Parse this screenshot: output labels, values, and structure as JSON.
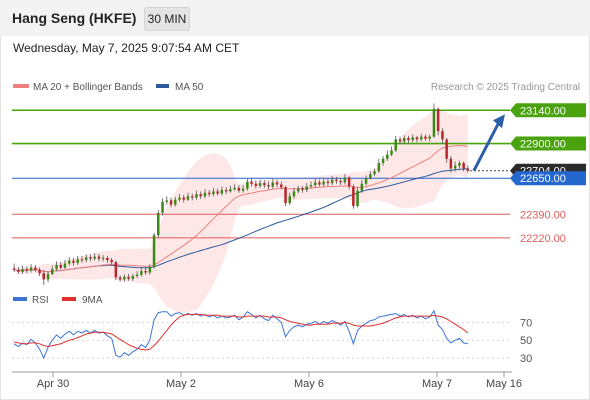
{
  "header": {
    "title": "Hang Seng (HKFE)",
    "timeframe": "30 MIN"
  },
  "datetime": "Wednesday, May 7, 2025 9:07:54 AM CET",
  "colors": {
    "ma20": "#f08080",
    "ma50": "#2c5a9a",
    "green": "#4aa30e",
    "red": "#e35a5a",
    "blue_level": "#2467cf",
    "rsi": "#3d74d6",
    "rsi_ma": "#e03030",
    "band_fill": "#fde3e3"
  },
  "chart_data": [
    {
      "type": "candlestick",
      "title": "Hang Seng (HKFE)",
      "legend": [
        {
          "name": "MA 20 + Bollinger Bands",
          "color": "#f08080"
        },
        {
          "name": "MA 50",
          "color": "#2c5a9a"
        }
      ],
      "copyright": "Research © 2025 Trading Central",
      "price_range": [
        21880,
        23250
      ],
      "current_price": 22704,
      "levels": [
        {
          "value": 23140,
          "label": "23140.00",
          "kind": "resistance"
        },
        {
          "value": 22900,
          "label": "22900.00",
          "kind": "resistance"
        },
        {
          "value": 22704,
          "label": "22704.00",
          "kind": "last"
        },
        {
          "value": 22650,
          "label": "22650.00",
          "kind": "pivot"
        },
        {
          "value": 22390,
          "label": "22390.00",
          "kind": "support"
        },
        {
          "value": 22220,
          "label": "22220.00",
          "kind": "support"
        }
      ],
      "xaxis": {
        "labels": [
          "Apr 30",
          "May 2",
          "May 6",
          "May 7",
          "May 16"
        ]
      },
      "candles": [
        [
          22000,
          21990,
          22035,
          21975
        ],
        [
          21990,
          21975,
          22010,
          21960
        ],
        [
          21975,
          21995,
          22020,
          21960
        ],
        [
          21995,
          21985,
          22015,
          21965
        ],
        [
          21985,
          22005,
          22030,
          21970
        ],
        [
          22005,
          21990,
          22025,
          21975
        ],
        [
          21990,
          21965,
          22005,
          21945
        ],
        [
          21965,
          21920,
          21985,
          21880
        ],
        [
          21920,
          21960,
          21975,
          21900
        ],
        [
          21960,
          21995,
          22020,
          21950
        ],
        [
          21995,
          22025,
          22050,
          21980
        ],
        [
          22025,
          22005,
          22045,
          21990
        ],
        [
          22005,
          22035,
          22060,
          21995
        ],
        [
          22035,
          22055,
          22080,
          22020
        ],
        [
          22055,
          22040,
          22075,
          22020
        ],
        [
          22040,
          22065,
          22090,
          22025
        ],
        [
          22065,
          22060,
          22090,
          22040
        ],
        [
          22060,
          22080,
          22100,
          22045
        ],
        [
          22080,
          22070,
          22100,
          22050
        ],
        [
          22070,
          22085,
          22110,
          22055
        ],
        [
          22085,
          22070,
          22105,
          22050
        ],
        [
          22070,
          22075,
          22095,
          22050
        ],
        [
          22075,
          22060,
          22090,
          22040
        ],
        [
          22060,
          22045,
          22075,
          22025
        ],
        [
          22045,
          21935,
          22055,
          21915
        ],
        [
          21935,
          21920,
          21950,
          21905
        ],
        [
          21920,
          21940,
          21955,
          21905
        ],
        [
          21940,
          21925,
          21960,
          21910
        ],
        [
          21925,
          21945,
          21960,
          21910
        ],
        [
          21945,
          21955,
          21980,
          21930
        ],
        [
          21955,
          21980,
          22000,
          21940
        ],
        [
          21980,
          21970,
          22010,
          21955
        ],
        [
          21970,
          22010,
          22030,
          21955
        ],
        [
          22010,
          22240,
          22255,
          22000
        ],
        [
          22240,
          22400,
          22420,
          22220
        ],
        [
          22400,
          22480,
          22505,
          22380
        ],
        [
          22480,
          22490,
          22520,
          22460
        ],
        [
          22490,
          22460,
          22510,
          22440
        ],
        [
          22460,
          22495,
          22515,
          22445
        ],
        [
          22495,
          22510,
          22535,
          22480
        ],
        [
          22510,
          22495,
          22530,
          22475
        ],
        [
          22495,
          22520,
          22545,
          22485
        ],
        [
          22520,
          22510,
          22540,
          22490
        ],
        [
          22510,
          22535,
          22560,
          22495
        ],
        [
          22535,
          22520,
          22555,
          22500
        ],
        [
          22520,
          22545,
          22570,
          22505
        ],
        [
          22545,
          22535,
          22565,
          22515
        ],
        [
          22535,
          22555,
          22580,
          22520
        ],
        [
          22555,
          22540,
          22575,
          22525
        ],
        [
          22540,
          22565,
          22590,
          22525
        ],
        [
          22565,
          22555,
          22585,
          22535
        ],
        [
          22555,
          22570,
          22595,
          22545
        ],
        [
          22570,
          22580,
          22605,
          22560
        ],
        [
          22580,
          22560,
          22600,
          22545
        ],
        [
          22560,
          22575,
          22600,
          22545
        ],
        [
          22575,
          22625,
          22645,
          22560
        ],
        [
          22625,
          22610,
          22655,
          22590
        ],
        [
          22610,
          22595,
          22635,
          22575
        ],
        [
          22595,
          22615,
          22640,
          22580
        ],
        [
          22615,
          22600,
          22635,
          22580
        ],
        [
          22600,
          22590,
          22625,
          22570
        ],
        [
          22590,
          22620,
          22645,
          22575
        ],
        [
          22620,
          22605,
          22640,
          22585
        ],
        [
          22605,
          22585,
          22625,
          22570
        ],
        [
          22585,
          22470,
          22595,
          22450
        ],
        [
          22470,
          22520,
          22545,
          22455
        ],
        [
          22520,
          22555,
          22580,
          22505
        ],
        [
          22555,
          22575,
          22595,
          22540
        ],
        [
          22575,
          22565,
          22595,
          22545
        ],
        [
          22565,
          22590,
          22615,
          22550
        ],
        [
          22590,
          22600,
          22625,
          22575
        ],
        [
          22600,
          22620,
          22645,
          22585
        ],
        [
          22620,
          22605,
          22640,
          22590
        ],
        [
          22605,
          22625,
          22650,
          22590
        ],
        [
          22625,
          22615,
          22645,
          22595
        ],
        [
          22615,
          22640,
          22665,
          22600
        ],
        [
          22640,
          22630,
          22660,
          22610
        ],
        [
          22630,
          22620,
          22650,
          22600
        ],
        [
          22620,
          22655,
          22680,
          22605
        ],
        [
          22655,
          22590,
          22665,
          22570
        ],
        [
          22590,
          22450,
          22605,
          22430
        ],
        [
          22450,
          22560,
          22585,
          22440
        ],
        [
          22560,
          22610,
          22640,
          22545
        ],
        [
          22610,
          22650,
          22670,
          22595
        ],
        [
          22650,
          22680,
          22700,
          22640
        ],
        [
          22680,
          22700,
          22720,
          22665
        ],
        [
          22700,
          22760,
          22790,
          22690
        ],
        [
          22760,
          22790,
          22810,
          22740
        ],
        [
          22790,
          22820,
          22850,
          22775
        ],
        [
          22820,
          22850,
          22880,
          22810
        ],
        [
          22850,
          22930,
          22955,
          22840
        ],
        [
          22930,
          22915,
          22950,
          22895
        ],
        [
          22915,
          22940,
          22960,
          22900
        ],
        [
          22940,
          22925,
          22955,
          22905
        ],
        [
          22925,
          22945,
          22965,
          22910
        ],
        [
          22945,
          22930,
          22955,
          22910
        ],
        [
          22930,
          22950,
          22970,
          22915
        ],
        [
          22950,
          22935,
          22965,
          22920
        ],
        [
          22935,
          22950,
          22965,
          22915
        ],
        [
          22950,
          23150,
          23190,
          22940
        ],
        [
          23150,
          22990,
          23160,
          22960
        ],
        [
          22990,
          22930,
          23010,
          22900
        ],
        [
          22930,
          22790,
          22940,
          22760
        ],
        [
          22790,
          22720,
          22810,
          22690
        ],
        [
          22720,
          22740,
          22770,
          22700
        ],
        [
          22740,
          22760,
          22775,
          22720
        ],
        [
          22760,
          22720,
          22770,
          22700
        ],
        [
          22720,
          22704,
          22740,
          22690
        ]
      ]
    },
    {
      "type": "line",
      "title": "RSI",
      "legend": [
        {
          "name": "RSI",
          "color": "#3d74d6"
        },
        {
          "name": "9MA",
          "color": "#e03030"
        }
      ],
      "yaxis": {
        "ticks": [
          70,
          50,
          30
        ],
        "range": [
          20,
          85
        ]
      },
      "series": [
        {
          "name": "RSI",
          "values": [
            46,
            43,
            47,
            45,
            51,
            47,
            40,
            30,
            42,
            50,
            56,
            52,
            57,
            60,
            56,
            60,
            58,
            61,
            58,
            61,
            58,
            59,
            55,
            52,
            33,
            31,
            36,
            33,
            37,
            40,
            45,
            42,
            50,
            73,
            81,
            82,
            82,
            77,
            80,
            81,
            78,
            80,
            78,
            80,
            77,
            79,
            76,
            78,
            75,
            77,
            75,
            76,
            78,
            73,
            76,
            82,
            79,
            75,
            78,
            74,
            72,
            78,
            74,
            70,
            54,
            61,
            65,
            67,
            65,
            68,
            69,
            71,
            68,
            71,
            69,
            72,
            70,
            67,
            71,
            60,
            46,
            61,
            66,
            69,
            72,
            73,
            76,
            77,
            78,
            79,
            80,
            77,
            79,
            76,
            78,
            75,
            77,
            74,
            76,
            83,
            67,
            62,
            52,
            47,
            50,
            52,
            47,
            46
          ]
        },
        {
          "name": "9MA",
          "values": [
            48,
            47,
            46,
            46,
            47,
            47,
            46,
            44,
            43,
            44,
            45,
            46,
            48,
            50,
            51,
            53,
            55,
            57,
            58,
            59,
            59,
            59,
            58,
            57,
            54,
            51,
            48,
            45,
            43,
            41,
            40,
            39,
            40,
            44,
            49,
            55,
            61,
            67,
            72,
            76,
            78,
            79,
            79,
            79,
            79,
            78,
            78,
            78,
            78,
            77,
            77,
            77,
            77,
            76,
            76,
            77,
            77,
            77,
            77,
            77,
            76,
            76,
            76,
            75,
            73,
            71,
            70,
            69,
            68,
            67,
            67,
            68,
            68,
            68,
            68,
            69,
            69,
            69,
            70,
            69,
            67,
            66,
            66,
            66,
            66,
            67,
            68,
            69,
            71,
            73,
            75,
            76,
            77,
            77,
            77,
            77,
            77,
            77,
            77,
            78,
            77,
            76,
            74,
            71,
            68,
            65,
            62,
            58
          ]
        }
      ]
    }
  ]
}
